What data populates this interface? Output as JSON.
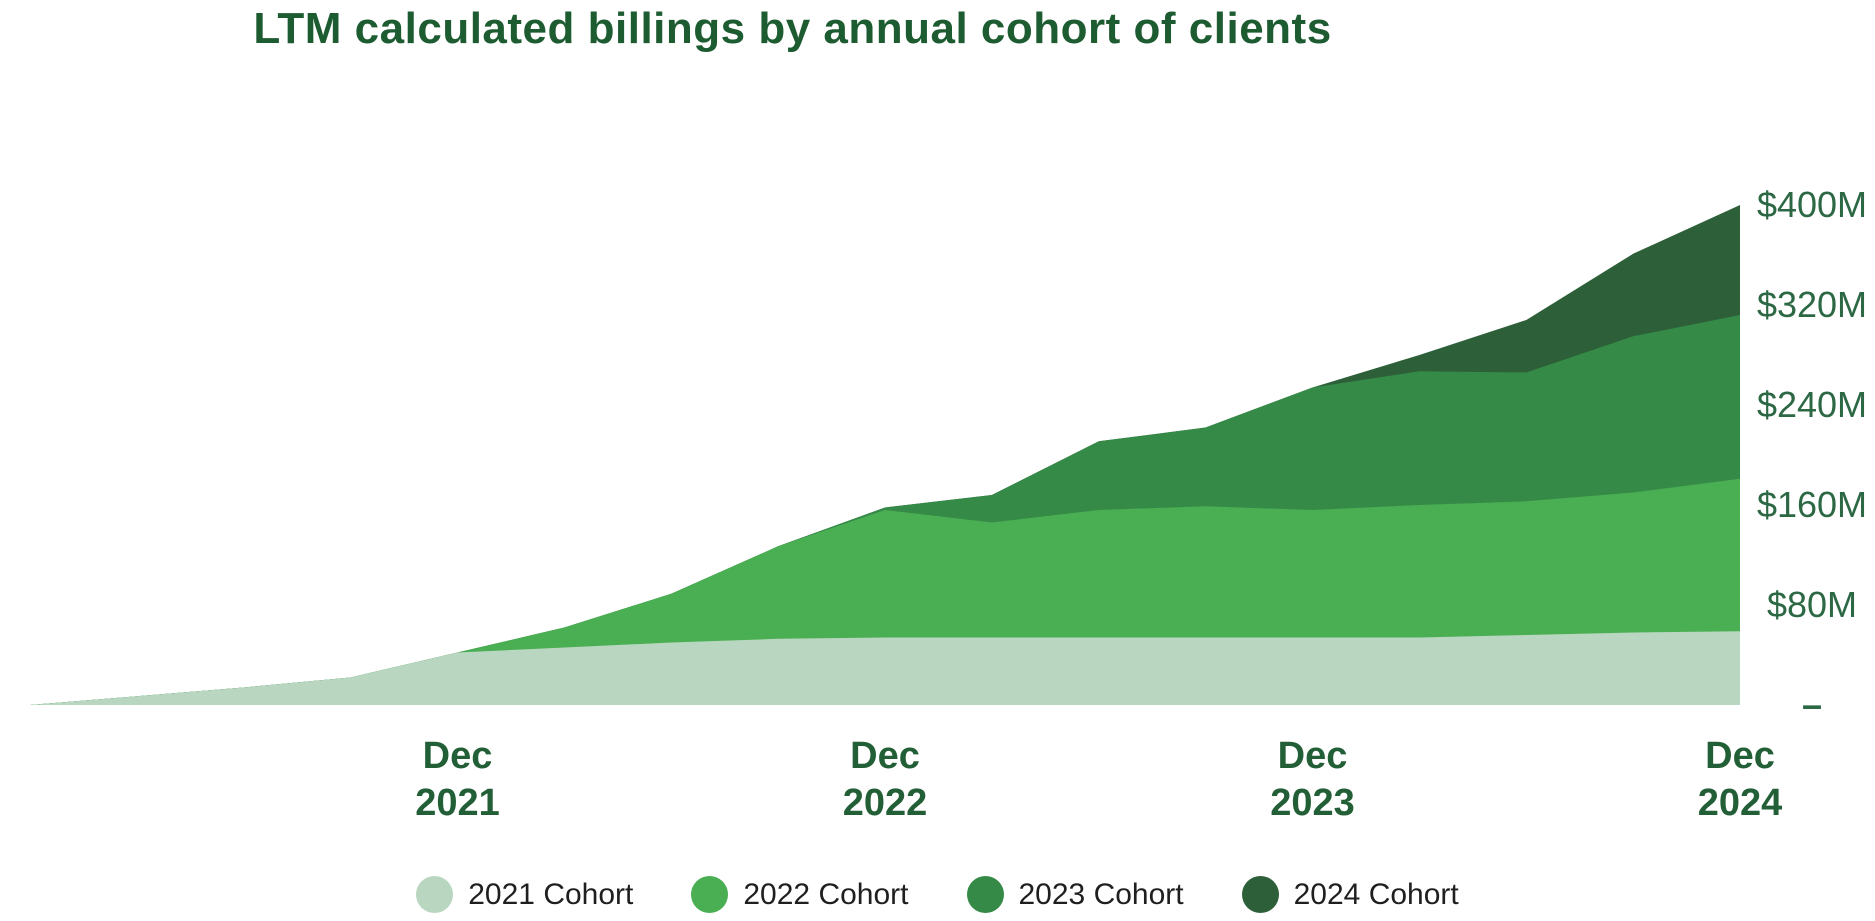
{
  "title": "LTM calculated billings by annual cohort of clients",
  "colors": {
    "background": "#ffffff",
    "title_text": "#1d5b31",
    "y_label_text": "#2c6844",
    "x_tick_text": "#235f36",
    "legend_text": "#1f1f1f"
  },
  "y_axis": {
    "labels": [
      {
        "text": "$400M",
        "value": 400
      },
      {
        "text": "$320M",
        "value": 320
      },
      {
        "text": "$240M",
        "value": 240
      },
      {
        "text": "$160M",
        "value": 160
      },
      {
        "text": "$80M",
        "value": 80
      },
      {
        "text": "–",
        "value": 0
      }
    ]
  },
  "x_axis": {
    "ticks": [
      {
        "line1": "Dec",
        "line2": "2021",
        "index": 4
      },
      {
        "line1": "Dec",
        "line2": "2022",
        "index": 8
      },
      {
        "line1": "Dec",
        "line2": "2023",
        "index": 12
      },
      {
        "line1": "Dec",
        "line2": "2024",
        "index": 16
      }
    ]
  },
  "legend": [
    {
      "label": "2021 Cohort",
      "color": "#b8d6c0"
    },
    {
      "label": "2022 Cohort",
      "color": "#4aae52"
    },
    {
      "label": "2023 Cohort",
      "color": "#358a48"
    },
    {
      "label": "2024 Cohort",
      "color": "#2d5f38"
    }
  ],
  "chart_data": {
    "type": "area",
    "stacked": true,
    "title": "LTM calculated billings by annual cohort of clients",
    "y_unit": "$M",
    "ylim": [
      0,
      400
    ],
    "y_ticks": [
      0,
      80,
      160,
      240,
      320,
      400
    ],
    "grid": false,
    "legend_position": "bottom",
    "x": [
      "Dec 2020",
      "Mar 2021",
      "Jun 2021",
      "Sep 2021",
      "Dec 2021",
      "Mar 2022",
      "Jun 2022",
      "Sep 2022",
      "Dec 2022",
      "Mar 2023",
      "Jun 2023",
      "Sep 2023",
      "Dec 2023",
      "Mar 2024",
      "Jun 2024",
      "Sep 2024",
      "Dec 2024"
    ],
    "x_tick_labels_shown": [
      "Dec 2021",
      "Dec 2022",
      "Dec 2023",
      "Dec 2024"
    ],
    "series": [
      {
        "name": "2021 Cohort",
        "color": "#b8d6c0",
        "values": [
          0,
          7,
          14,
          22,
          42,
          46,
          50,
          53,
          54,
          54,
          54,
          54,
          54,
          54,
          56,
          58,
          59
        ]
      },
      {
        "name": "2022 Cohort",
        "color": "#4aae52",
        "values": [
          0,
          0,
          0,
          0,
          0,
          16,
          39,
          74,
          102,
          92,
          102,
          105,
          102,
          106,
          107,
          112,
          122
        ]
      },
      {
        "name": "2023 Cohort",
        "color": "#358a48",
        "values": [
          0,
          0,
          0,
          0,
          0,
          0,
          0,
          0,
          2,
          22,
          55,
          63,
          98,
          107,
          103,
          125,
          131
        ]
      },
      {
        "name": "2024 Cohort",
        "color": "#2d5f38",
        "values": [
          0,
          0,
          0,
          0,
          0,
          0,
          0,
          0,
          0,
          0,
          0,
          0,
          0,
          13,
          42,
          66,
          88
        ]
      }
    ],
    "totals_at_shown_ticks": {
      "Dec 2021": 42,
      "Dec 2022": 158,
      "Dec 2023": 254,
      "Dec 2024": 400
    }
  }
}
